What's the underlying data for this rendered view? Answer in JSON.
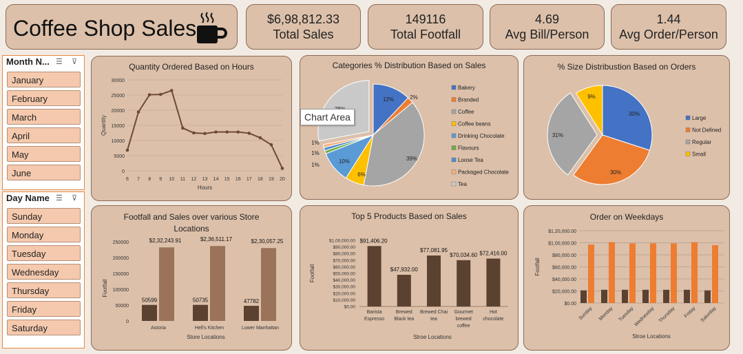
{
  "header": {
    "title": "Coffee Shop Sales",
    "icon": "coffee-cup-icon"
  },
  "kpis": [
    {
      "value": "$6,98,812.33",
      "label": "Total Sales"
    },
    {
      "value": "149116",
      "label": "Total Footfall"
    },
    {
      "value": "4.69",
      "label": "Avg Bill/Person"
    },
    {
      "value": "1.44",
      "label": "Avg Order/Person"
    }
  ],
  "month_slicer": {
    "title": "Month N...",
    "items": [
      "January",
      "February",
      "March",
      "April",
      "May",
      "June"
    ]
  },
  "day_slicer": {
    "title": "Day Name",
    "items": [
      "Sunday",
      "Monday",
      "Tuesday",
      "Wednesday",
      "Thursday",
      "Friday",
      "Saturday"
    ]
  },
  "tooltip": "Chart Area",
  "colors": {
    "card": "#dcc0aa",
    "dark_bar": "#5b4130",
    "light_bar": "#9b735a",
    "orange_bar": "#ed7d31",
    "slicer_item": "#f5c9ad",
    "slicer_border": "#e7873a"
  },
  "chart_data": [
    {
      "type": "line",
      "title": "Quantity Ordered Based on Hours",
      "xlabel": "Hours",
      "ylabel": "Quantity",
      "x": [
        6,
        7,
        8,
        9,
        10,
        11,
        12,
        13,
        14,
        15,
        16,
        17,
        18,
        19,
        20
      ],
      "values": [
        6800,
        19400,
        25100,
        25200,
        26500,
        14100,
        12500,
        12300,
        12800,
        12800,
        12800,
        12400,
        10900,
        8600,
        800
      ],
      "ylim": [
        0,
        30000
      ],
      "yticks": [
        "0",
        "5000",
        "10000",
        "15000",
        "20000",
        "25000",
        "30000"
      ]
    },
    {
      "type": "pie",
      "title": "Categories % Distribution Based on Sales",
      "categories": [
        "Bakery",
        "Branded",
        "Coffee",
        "Coffee beans",
        "Drinking Chocolate",
        "Flavours",
        "Loose Tea",
        "Packaged Chocolate",
        "Tea"
      ],
      "values": [
        12,
        2,
        39,
        6,
        10,
        1,
        1,
        1,
        28
      ],
      "labels": [
        "12%",
        "2%",
        "39%",
        "6%",
        "10%",
        "1%",
        "1%",
        "1%",
        "28%"
      ],
      "colors": [
        "#4472c4",
        "#ed7d31",
        "#a5a5a5",
        "#ffc000",
        "#5b9bd5",
        "#70ad47",
        "#4f8fcf",
        "#f4b183",
        "#c9c9c9"
      ],
      "legend": "right"
    },
    {
      "type": "pie",
      "title": "% Size Distribustion Based on Orders",
      "categories": [
        "Large",
        "Not Defined",
        "Regular",
        "Small"
      ],
      "values": [
        30,
        30,
        31,
        9
      ],
      "labels": [
        "30%",
        "30%",
        "31%",
        "9%"
      ],
      "colors": [
        "#4472c4",
        "#ed7d31",
        "#a5a5a5",
        "#ffc000"
      ],
      "legend": "right"
    },
    {
      "type": "bar",
      "title": "Footfall and Sales over various Store Locations",
      "xlabel": "Store Locations",
      "ylabel": "Footfall",
      "categories": [
        "Astoria",
        "Hell's Kitchen",
        "Lower Manhattan"
      ],
      "series": [
        {
          "values": [
            50599,
            50735,
            47782
          ],
          "labels": [
            "50599",
            "50735",
            "47782"
          ]
        },
        {
          "values": [
            232243.91,
            236511.17,
            230057.25
          ],
          "labels": [
            "$2,32,243.91",
            "$2,36,511.17",
            "$2,30,057.25"
          ]
        }
      ],
      "ylim": [
        0,
        250000
      ],
      "yticks": [
        "0",
        "50000",
        "100000",
        "150000",
        "200000",
        "250000"
      ]
    },
    {
      "type": "bar",
      "title": "Top 5 Products Based on Sales",
      "xlabel": "Stroe Locations",
      "ylabel": "Footfall",
      "categories": [
        [
          "Barista",
          "Espresso"
        ],
        [
          "Brewed",
          "Black tea"
        ],
        [
          "Brewed Chai",
          "tea"
        ],
        [
          "Gourmet",
          "brewed",
          "coffee"
        ],
        [
          "Hot",
          "chocolate"
        ]
      ],
      "values": [
        91406.2,
        47932.0,
        77081.95,
        70034.6,
        72416.0
      ],
      "labels": [
        "$91,406.20",
        "$47,932.00",
        "$77,081.95",
        "$70,034.60",
        "$72,416.00"
      ],
      "ylim": [
        0,
        100000
      ],
      "yticks": [
        "$0.00",
        "$10,000.00",
        "$20,000.00",
        "$30,000.00",
        "$40,000.00",
        "$50,000.00",
        "$60,000.00",
        "$70,000.00",
        "$80,000.00",
        "$90,000.00",
        "$1,00,000.00"
      ]
    },
    {
      "type": "bar",
      "title": "Order on Weekdays",
      "xlabel": "Stroe Locations",
      "categories": [
        "Sunday",
        "Monday",
        "Tuesday",
        "Wednesday",
        "Thursday",
        "Friday",
        "Saturday"
      ],
      "series": [
        {
          "values": [
            21000,
            22000,
            22000,
            22000,
            22000,
            22000,
            21000
          ]
        },
        {
          "values": [
            97000,
            101000,
            99000,
            99000,
            99000,
            101000,
            96000
          ]
        }
      ],
      "ylim": [
        0,
        120000
      ],
      "yticks": [
        "$0.00",
        "$20,000.00",
        "$40,000.00",
        "$60,000.00",
        "$80,000.00",
        "$1,00,000.00",
        "$1,20,000.00"
      ]
    }
  ]
}
